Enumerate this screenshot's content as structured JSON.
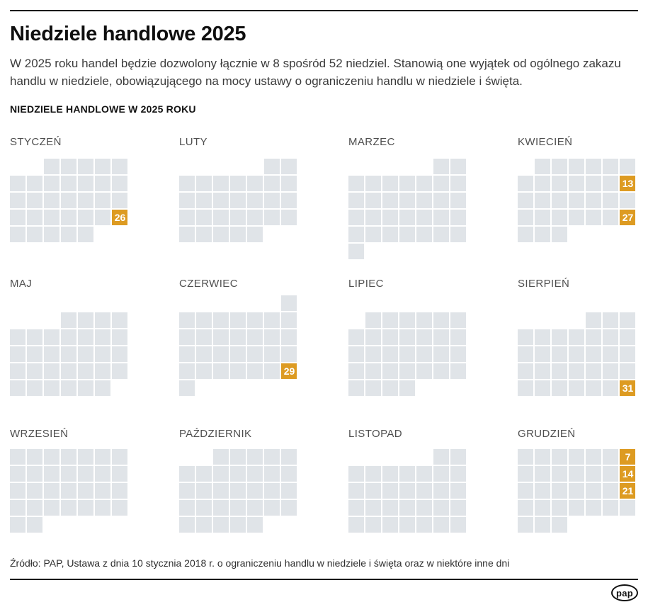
{
  "header": {
    "title": "Niedziele handlowe 2025",
    "intro": "W 2025 roku handel będzie dozwolony łącznie w 8 spośród 52 niedziel. Stanowią one wyjątek od ogólnego zakazu handlu w niedziele, obowiązującego na mocy ustawy o ograniczeniu handlu w niedziele i święta.",
    "section_title": "NIEDZIELE HANDLOWE W 2025 ROKU"
  },
  "chart_data": {
    "type": "calendar",
    "title": "Niedziele handlowe w 2025 roku",
    "year": 2025,
    "week_starts": "monday",
    "total_trading_sundays": 8,
    "total_sundays": 52,
    "trading_sundays": [
      {
        "month": "STYCZEŃ",
        "day": 26
      },
      {
        "month": "KWIECIEŃ",
        "day": 13
      },
      {
        "month": "KWIECIEŃ",
        "day": 27
      },
      {
        "month": "CZERWIEC",
        "day": 29
      },
      {
        "month": "SIERPIEŃ",
        "day": 31
      },
      {
        "month": "GRUDZIEŃ",
        "day": 7
      },
      {
        "month": "GRUDZIEŃ",
        "day": 14
      },
      {
        "month": "GRUDZIEŃ",
        "day": 21
      }
    ],
    "months": [
      {
        "name": "STYCZEŃ",
        "weeks": [
          [
            0,
            0,
            1,
            1,
            1,
            1,
            1
          ],
          [
            1,
            1,
            1,
            1,
            1,
            1,
            1
          ],
          [
            1,
            1,
            1,
            1,
            1,
            1,
            1
          ],
          [
            1,
            1,
            1,
            1,
            1,
            1,
            "26"
          ],
          [
            1,
            1,
            1,
            1,
            1,
            0,
            0
          ]
        ]
      },
      {
        "name": "LUTY",
        "weeks": [
          [
            0,
            0,
            0,
            0,
            0,
            1,
            1
          ],
          [
            1,
            1,
            1,
            1,
            1,
            1,
            1
          ],
          [
            1,
            1,
            1,
            1,
            1,
            1,
            1
          ],
          [
            1,
            1,
            1,
            1,
            1,
            1,
            1
          ],
          [
            1,
            1,
            1,
            1,
            1,
            0,
            0
          ]
        ]
      },
      {
        "name": "MARZEC",
        "weeks": [
          [
            0,
            0,
            0,
            0,
            0,
            1,
            1
          ],
          [
            1,
            1,
            1,
            1,
            1,
            1,
            1
          ],
          [
            1,
            1,
            1,
            1,
            1,
            1,
            1
          ],
          [
            1,
            1,
            1,
            1,
            1,
            1,
            1
          ],
          [
            1,
            1,
            1,
            1,
            1,
            1,
            1
          ],
          [
            1,
            0,
            0,
            0,
            0,
            0,
            0
          ]
        ]
      },
      {
        "name": "KWIECIEŃ",
        "weeks": [
          [
            0,
            1,
            1,
            1,
            1,
            1,
            1
          ],
          [
            1,
            1,
            1,
            1,
            1,
            1,
            "13"
          ],
          [
            1,
            1,
            1,
            1,
            1,
            1,
            1
          ],
          [
            1,
            1,
            1,
            1,
            1,
            1,
            "27"
          ],
          [
            1,
            1,
            1,
            0,
            0,
            0,
            0
          ]
        ]
      },
      {
        "name": "MAJ",
        "weeks": [
          [
            0,
            0,
            0,
            1,
            1,
            1,
            1
          ],
          [
            1,
            1,
            1,
            1,
            1,
            1,
            1
          ],
          [
            1,
            1,
            1,
            1,
            1,
            1,
            1
          ],
          [
            1,
            1,
            1,
            1,
            1,
            1,
            1
          ],
          [
            1,
            1,
            1,
            1,
            1,
            1,
            0
          ]
        ]
      },
      {
        "name": "CZERWIEC",
        "weeks": [
          [
            0,
            0,
            0,
            0,
            0,
            0,
            1
          ],
          [
            1,
            1,
            1,
            1,
            1,
            1,
            1
          ],
          [
            1,
            1,
            1,
            1,
            1,
            1,
            1
          ],
          [
            1,
            1,
            1,
            1,
            1,
            1,
            1
          ],
          [
            1,
            1,
            1,
            1,
            1,
            1,
            "29"
          ],
          [
            1,
            0,
            0,
            0,
            0,
            0,
            0
          ]
        ]
      },
      {
        "name": "LIPIEC",
        "weeks": [
          [
            0,
            1,
            1,
            1,
            1,
            1,
            1
          ],
          [
            1,
            1,
            1,
            1,
            1,
            1,
            1
          ],
          [
            1,
            1,
            1,
            1,
            1,
            1,
            1
          ],
          [
            1,
            1,
            1,
            1,
            1,
            1,
            1
          ],
          [
            1,
            1,
            1,
            1,
            0,
            0,
            0
          ]
        ]
      },
      {
        "name": "SIERPIEŃ",
        "weeks": [
          [
            0,
            0,
            0,
            0,
            1,
            1,
            1
          ],
          [
            1,
            1,
            1,
            1,
            1,
            1,
            1
          ],
          [
            1,
            1,
            1,
            1,
            1,
            1,
            1
          ],
          [
            1,
            1,
            1,
            1,
            1,
            1,
            1
          ],
          [
            1,
            1,
            1,
            1,
            1,
            1,
            "31"
          ]
        ]
      },
      {
        "name": "WRZESIEŃ",
        "weeks": [
          [
            1,
            1,
            1,
            1,
            1,
            1,
            1
          ],
          [
            1,
            1,
            1,
            1,
            1,
            1,
            1
          ],
          [
            1,
            1,
            1,
            1,
            1,
            1,
            1
          ],
          [
            1,
            1,
            1,
            1,
            1,
            1,
            1
          ],
          [
            1,
            1,
            0,
            0,
            0,
            0,
            0
          ]
        ]
      },
      {
        "name": "PAŹDZIERNIK",
        "weeks": [
          [
            0,
            0,
            1,
            1,
            1,
            1,
            1
          ],
          [
            1,
            1,
            1,
            1,
            1,
            1,
            1
          ],
          [
            1,
            1,
            1,
            1,
            1,
            1,
            1
          ],
          [
            1,
            1,
            1,
            1,
            1,
            1,
            1
          ],
          [
            1,
            1,
            1,
            1,
            1,
            0,
            0
          ]
        ]
      },
      {
        "name": "LISTOPAD",
        "weeks": [
          [
            0,
            0,
            0,
            0,
            0,
            1,
            1
          ],
          [
            1,
            1,
            1,
            1,
            1,
            1,
            1
          ],
          [
            1,
            1,
            1,
            1,
            1,
            1,
            1
          ],
          [
            1,
            1,
            1,
            1,
            1,
            1,
            1
          ],
          [
            1,
            1,
            1,
            1,
            1,
            1,
            1
          ]
        ]
      },
      {
        "name": "GRUDZIEŃ",
        "weeks": [
          [
            1,
            1,
            1,
            1,
            1,
            1,
            "7"
          ],
          [
            1,
            1,
            1,
            1,
            1,
            1,
            "14"
          ],
          [
            1,
            1,
            1,
            1,
            1,
            1,
            "21"
          ],
          [
            1,
            1,
            1,
            1,
            1,
            1,
            1
          ],
          [
            1,
            1,
            1,
            0,
            0,
            0,
            0
          ]
        ]
      }
    ]
  },
  "colors": {
    "accent_orange": "#dd9b22",
    "day_gray": "#e0e4e8",
    "ink": "#1a1a1a"
  },
  "footer": {
    "source": "Źródło: PAP, Ustawa z dnia 10 stycznia 2018 r. o ograniczeniu handlu w niedziele i święta oraz w niektóre inne dni",
    "logo_text": "pap"
  }
}
